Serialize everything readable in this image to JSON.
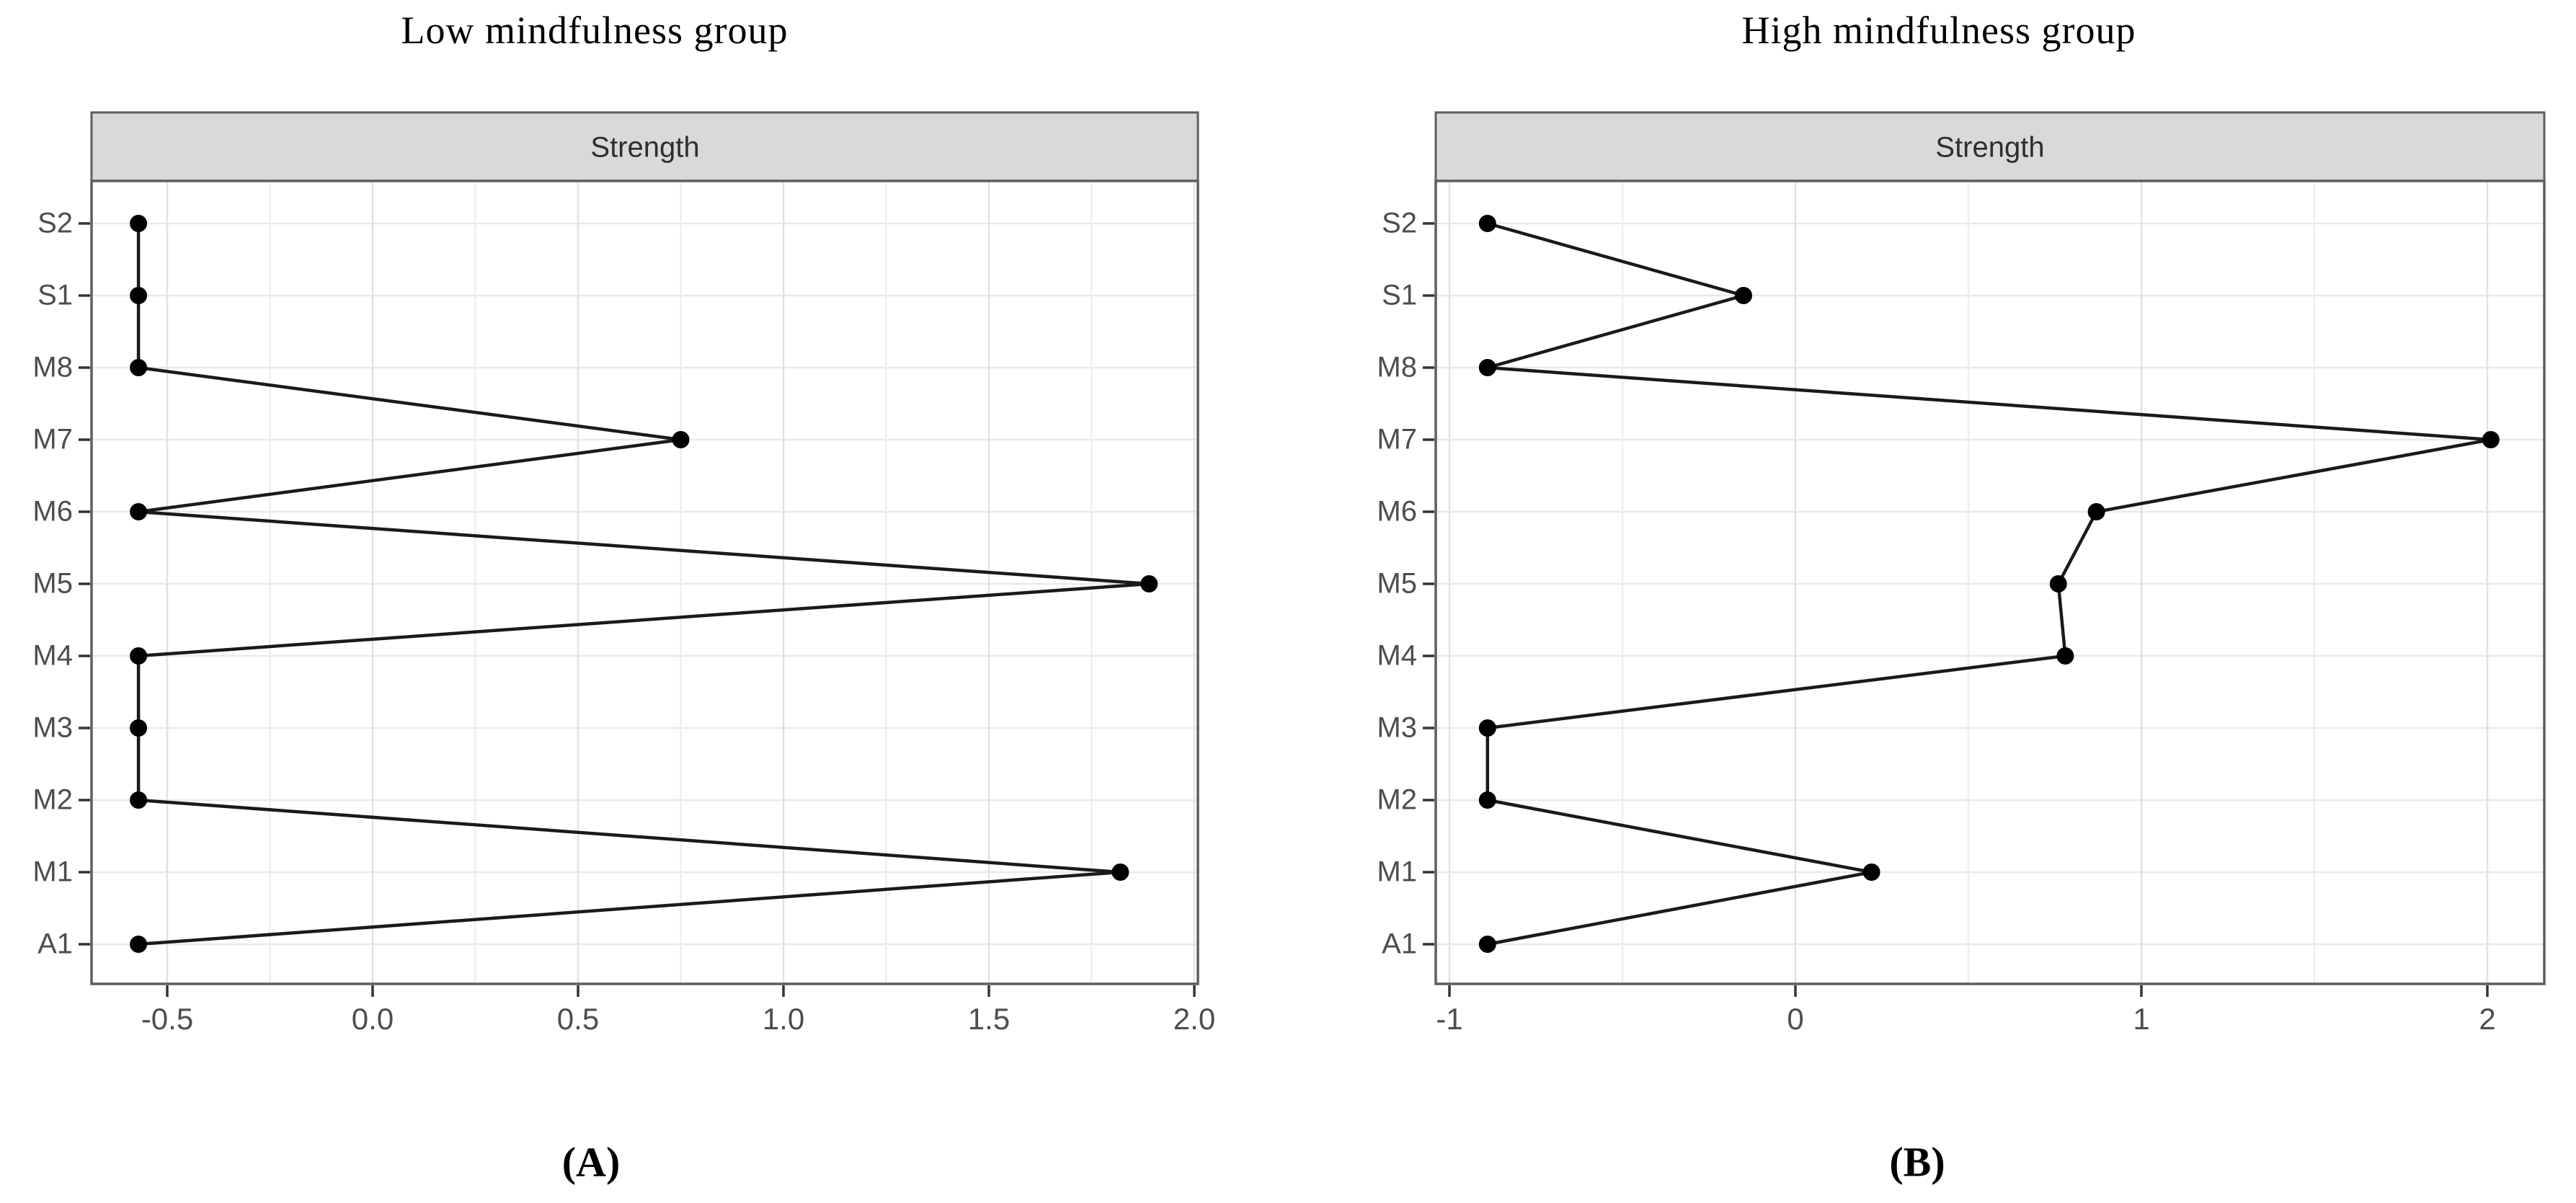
{
  "figure": {
    "background": "#ffffff",
    "styles": {
      "strip_fill": "#d9d9d9",
      "panel_fill": "#ffffff",
      "panel_border": "#5e5e5e",
      "grid_major": "#e2e2e2",
      "grid_minor": "#efefef",
      "grid_row": "#e9e9e9",
      "tick_color": "#333333",
      "line_color": "#1a1a1a",
      "point_color": "#000000",
      "axis_text_color": "#4d4d4d"
    }
  },
  "chart_data": [
    {
      "type": "line",
      "panel": "A",
      "title": "Low mindfulness group",
      "facet_label": "Strength",
      "caption": "(A)",
      "legend": "none",
      "grid": true,
      "categories": [
        "S2",
        "S1",
        "M8",
        "M7",
        "M6",
        "M5",
        "M4",
        "M3",
        "M2",
        "M1",
        "A1"
      ],
      "values": [
        -0.57,
        -0.57,
        -0.57,
        0.75,
        -0.57,
        1.89,
        -0.57,
        -0.57,
        -0.57,
        1.82,
        -0.57
      ],
      "x_tick_labels": [
        "-0.5",
        "0.0",
        "0.5",
        "1.0",
        "1.5",
        "2.0"
      ],
      "x_tick_values": [
        -0.5,
        0.0,
        0.5,
        1.0,
        1.5,
        2.0
      ],
      "x_minor_values": [
        -0.25,
        0.25,
        0.75,
        1.25,
        1.75
      ],
      "xlim": [
        -0.68,
        2.01
      ],
      "xlabel": "",
      "ylabel": ""
    },
    {
      "type": "line",
      "panel": "B",
      "title": "High mindfulness group",
      "facet_label": "Strength",
      "caption": "(B)",
      "legend": "none",
      "grid": true,
      "categories": [
        "S2",
        "S1",
        "M8",
        "M7",
        "M6",
        "M5",
        "M4",
        "M3",
        "M2",
        "M1",
        "A1"
      ],
      "values": [
        -0.89,
        -0.15,
        -0.89,
        2.01,
        0.87,
        0.76,
        0.78,
        -0.89,
        -0.89,
        0.22,
        -0.89
      ],
      "x_tick_labels": [
        "-1",
        "0",
        "1",
        "2"
      ],
      "x_tick_values": [
        -1,
        0,
        1,
        2
      ],
      "x_minor_values": [
        -0.5,
        0.5,
        1.5
      ],
      "xlim": [
        -1.04,
        2.16
      ],
      "xlabel": "",
      "ylabel": ""
    }
  ]
}
